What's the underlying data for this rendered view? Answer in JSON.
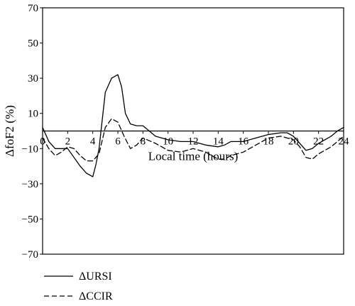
{
  "chart_data": {
    "type": "line",
    "title": "",
    "xlabel": "Local time (hours)",
    "ylabel": "ΔfoF2 (%)",
    "xlim": [
      0,
      24
    ],
    "ylim": [
      -70,
      70
    ],
    "x_ticks": [
      0,
      2,
      4,
      6,
      8,
      10,
      12,
      14,
      16,
      18,
      20,
      22,
      24
    ],
    "x_tick_labels": [
      "0",
      "2",
      "4",
      "6",
      "8",
      "10",
      "12",
      "14",
      "16",
      "18",
      "20",
      "22",
      "24"
    ],
    "y_ticks": [
      70,
      50,
      30,
      10,
      -10,
      -30,
      -50,
      -70
    ],
    "y_tick_labels": [
      "70",
      "50",
      "30",
      "10",
      "−10",
      "−30",
      "−50",
      "−70"
    ],
    "zero_line": true,
    "grid": false,
    "legend_position": "bottom-left",
    "series": [
      {
        "name": "ΔURSI",
        "style": "solid",
        "color": "#000000",
        "x": [
          0,
          0.5,
          1,
          1.5,
          2,
          2.5,
          3,
          3.5,
          4,
          4.25,
          4.5,
          5,
          5.5,
          6,
          6.3,
          6.6,
          7,
          7.5,
          8,
          8.5,
          9,
          10,
          11,
          12,
          13,
          14,
          14.5,
          15,
          16,
          17,
          18,
          19,
          19.5,
          20,
          20.5,
          21,
          21.5,
          22,
          22.5,
          23,
          23.5,
          24
        ],
        "y": [
          2,
          -6,
          -10,
          -10,
          -10,
          -15,
          -20,
          -24,
          -26,
          -19,
          -10,
          22,
          30,
          32,
          25,
          10,
          4,
          3,
          3,
          0,
          -3,
          -5,
          -6,
          -6,
          -8,
          -9,
          -8,
          -6,
          -6,
          -4,
          -2,
          -1,
          -1,
          -3,
          -7,
          -11,
          -10,
          -7,
          -5,
          -3,
          0,
          2
        ]
      },
      {
        "name": "ΔCCIR",
        "style": "dashed",
        "color": "#000000",
        "x": [
          0,
          0.5,
          1,
          1.5,
          2,
          2.5,
          3,
          3.5,
          4,
          4.5,
          5,
          5.5,
          6,
          6.5,
          7,
          7.5,
          8,
          9,
          10,
          11,
          12,
          13,
          14,
          14.5,
          15,
          16,
          17,
          18,
          19,
          19.5,
          20,
          20.5,
          21,
          21.5,
          22,
          23,
          24
        ],
        "y": [
          -4,
          -10,
          -14,
          -12,
          -9,
          -10,
          -14,
          -17,
          -17,
          -13,
          2,
          7,
          5,
          -3,
          -10,
          -8,
          -4,
          -7,
          -11,
          -12,
          -10,
          -12,
          -16,
          -16,
          -14,
          -12,
          -8,
          -4,
          -3,
          -4,
          -5,
          -9,
          -15,
          -16,
          -13,
          -9,
          -3
        ]
      }
    ]
  }
}
